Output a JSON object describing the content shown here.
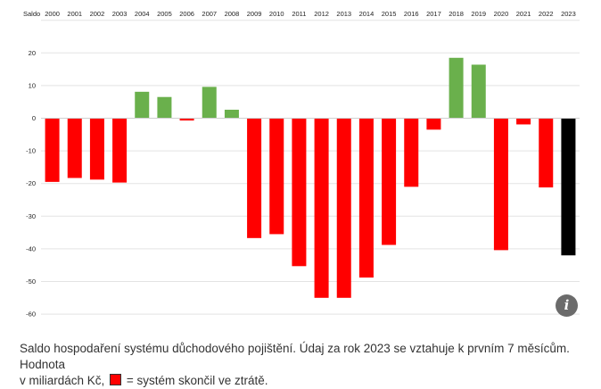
{
  "chart_data": {
    "type": "bar",
    "ylabel": "Saldo",
    "categories": [
      "2000",
      "2001",
      "2002",
      "2003",
      "2004",
      "2005",
      "2006",
      "2007",
      "2008",
      "2009",
      "2010",
      "2011",
      "2012",
      "2013",
      "2014",
      "2015",
      "2016",
      "2017",
      "2018",
      "2019",
      "2020",
      "2021",
      "2022",
      "2023"
    ],
    "values": [
      -19.5,
      -18.3,
      -18.8,
      -19.7,
      8.1,
      6.5,
      -0.7,
      9.6,
      2.6,
      -36.7,
      -35.5,
      -45.3,
      -55,
      -55,
      -48.8,
      -38.8,
      -21,
      -3.5,
      18.5,
      16.4,
      -40.4,
      -1.9,
      -21.2,
      -42
    ],
    "colors": [
      "#ff0000",
      "#ff0000",
      "#ff0000",
      "#ff0000",
      "#6ab04c",
      "#6ab04c",
      "#ff0000",
      "#6ab04c",
      "#6ab04c",
      "#ff0000",
      "#ff0000",
      "#ff0000",
      "#ff0000",
      "#ff0000",
      "#ff0000",
      "#ff0000",
      "#ff0000",
      "#ff0000",
      "#6ab04c",
      "#6ab04c",
      "#ff0000",
      "#ff0000",
      "#ff0000",
      "#000000"
    ],
    "yticks": [
      20,
      10,
      0,
      -10,
      -20,
      -30,
      -40,
      -50,
      -60
    ],
    "ylim": [
      -60,
      30
    ],
    "grid": true,
    "axis_position": "top"
  },
  "caption": {
    "line1": "Saldo hospodaření systému důchodového pojištění. Údaj za rok 2023 se vztahuje k prvním 7 měsícům. Hodnota",
    "line2_before": "v miliardách Kč,",
    "line2_after": "= systém skončil ve ztrátě."
  },
  "info_button": {
    "glyph": "i"
  },
  "colors": {
    "deficit": "#ff0000",
    "surplus": "#6ab04c",
    "partial_year": "#000000",
    "grid": "#e3e3e3"
  }
}
